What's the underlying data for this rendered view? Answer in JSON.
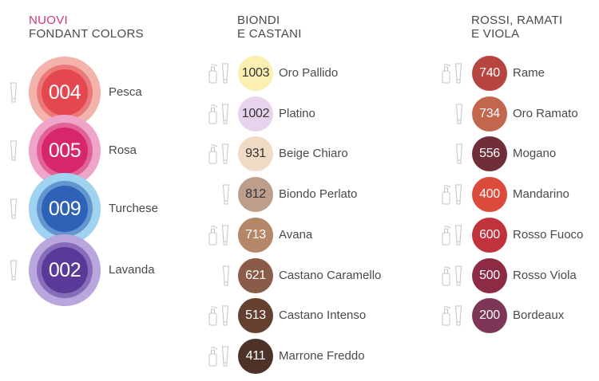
{
  "columns": [
    {
      "title_line1": "NUOVI",
      "title_line2": "FONDANT COLORS"
    },
    {
      "title_line1": "BIONDI",
      "title_line2": "E CASTANI"
    },
    {
      "title_line1": "ROSSI, RAMATI",
      "title_line2": "E VIOLA"
    }
  ],
  "nuovi": [
    {
      "code": "004",
      "name": "Pesca",
      "color": "#e5474f",
      "halo": "#f3b3aa",
      "icons": "tube"
    },
    {
      "code": "005",
      "name": "Rosa",
      "color": "#d7266a",
      "halo": "#eea5c9",
      "icons": "tube"
    },
    {
      "code": "009",
      "name": "Turchese",
      "color": "#2e62b6",
      "halo": "#9fd3ef",
      "icons": "tube"
    },
    {
      "code": "002",
      "name": "Lavanda",
      "color": "#5a3a99",
      "halo": "#b9a6dd",
      "icons": "tube"
    }
  ],
  "biondi": [
    {
      "code": "1003",
      "name": "Oro Pallido",
      "color": "#fbefb1",
      "text": "#333333",
      "icons": "both"
    },
    {
      "code": "1002",
      "name": "Platino",
      "color": "#e8d3ee",
      "text": "#333333",
      "icons": "both"
    },
    {
      "code": "931",
      "name": "Beige Chiaro",
      "color": "#f0dcc6",
      "text": "#333333",
      "icons": "both"
    },
    {
      "code": "812",
      "name": "Biondo Perlato",
      "color": "#bd9e8d",
      "text": "#333333",
      "icons": "tube"
    },
    {
      "code": "713",
      "name": "Avana",
      "color": "#b58667",
      "text": "#ffffff",
      "icons": "both"
    },
    {
      "code": "621",
      "name": "Castano Caramello",
      "color": "#8a5b49",
      "text": "#ffffff",
      "icons": "tube"
    },
    {
      "code": "513",
      "name": "Castano Intenso",
      "color": "#63402f",
      "text": "#ffffff",
      "icons": "both"
    },
    {
      "code": "411",
      "name": "Marrone Freddo",
      "color": "#4d3228",
      "text": "#ffffff",
      "icons": "both"
    }
  ],
  "rossi": [
    {
      "code": "740",
      "name": "Rame",
      "color": "#b5453e",
      "text": "#ffffff",
      "icons": "both"
    },
    {
      "code": "734",
      "name": "Oro Ramato",
      "color": "#c3664e",
      "text": "#ffffff",
      "icons": "tube"
    },
    {
      "code": "556",
      "name": "Mogano",
      "color": "#6f2e3a",
      "text": "#ffffff",
      "icons": "tube"
    },
    {
      "code": "400",
      "name": "Mandarino",
      "color": "#db4a3b",
      "text": "#ffffff",
      "icons": "both"
    },
    {
      "code": "600",
      "name": "Rosso Fuoco",
      "color": "#c0333d",
      "text": "#ffffff",
      "icons": "both"
    },
    {
      "code": "500",
      "name": "Rosso Viola",
      "color": "#8d2b45",
      "text": "#ffffff",
      "icons": "both"
    },
    {
      "code": "200",
      "name": "Bordeaux",
      "color": "#7d3656",
      "text": "#ffffff",
      "icons": "both"
    }
  ]
}
